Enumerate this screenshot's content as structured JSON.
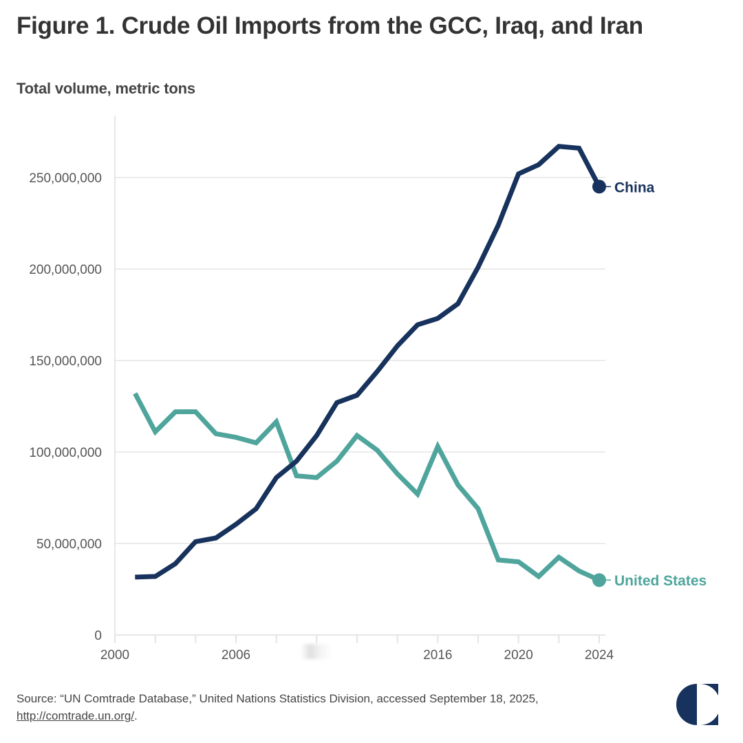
{
  "header": {
    "title": "Figure 1. Crude Oil Imports from the GCC, Iraq, and Iran",
    "subtitle": "Total volume, metric tons"
  },
  "chart_data": {
    "type": "line",
    "title": "Figure 1. Crude Oil Imports from the GCC, Iraq, and Iran",
    "subtitle": "Total volume, metric tons",
    "xlabel": "",
    "ylabel": "Total volume, metric tons",
    "xlim": [
      2000,
      2024
    ],
    "ylim": [
      0,
      275000000
    ],
    "x_ticks": [
      2000,
      2002,
      2004,
      2006,
      2008,
      2010,
      2012,
      2014,
      2016,
      2018,
      2020,
      2022,
      2024
    ],
    "x_tick_labels": [
      "2000",
      "",
      "",
      "2006",
      "",
      "",
      "",
      "",
      "2016",
      "",
      "2020",
      "",
      "2024"
    ],
    "y_ticks": [
      0,
      50000000,
      100000000,
      150000000,
      200000000,
      250000000
    ],
    "y_tick_labels": [
      "0",
      "50,000,000",
      "100,000,000",
      "150,000,000",
      "200,000,000",
      "250,000,000"
    ],
    "grid": true,
    "legend": "direct-labels-right",
    "x": [
      2001,
      2002,
      2003,
      2004,
      2005,
      2006,
      2007,
      2008,
      2009,
      2010,
      2011,
      2012,
      2013,
      2014,
      2015,
      2016,
      2017,
      2018,
      2019,
      2020,
      2021,
      2022,
      2023,
      2024
    ],
    "series": [
      {
        "name": "China",
        "color": "#17325c",
        "values": [
          31600000,
          32000000,
          39000000,
          51000000,
          53000000,
          60500000,
          69000000,
          86000000,
          95000000,
          109000000,
          127000000,
          131000000,
          144000000,
          158000000,
          169500000,
          173000000,
          181000000,
          201000000,
          224000000,
          252000000,
          257000000,
          267000000,
          266000000,
          245000000
        ]
      },
      {
        "name": "United States",
        "color": "#4fa59c",
        "values": [
          132000000,
          111000000,
          122000000,
          122000000,
          110000000,
          108000000,
          105000000,
          116500000,
          87000000,
          86000000,
          95000000,
          109000000,
          101000000,
          88000000,
          77000000,
          103000000,
          82000000,
          69000000,
          41000000,
          40000000,
          32000000,
          42500000,
          35000000,
          30000000
        ]
      }
    ]
  },
  "footer": {
    "source_text": "Source: “UN Comtrade Database,” United Nations Statistics Division, accessed September 18, 2025,",
    "source_link": "http://comtrade.un.org/",
    "source_end": "."
  },
  "logo": {
    "name": "half-circle-logo-icon",
    "color": "#17325c"
  }
}
